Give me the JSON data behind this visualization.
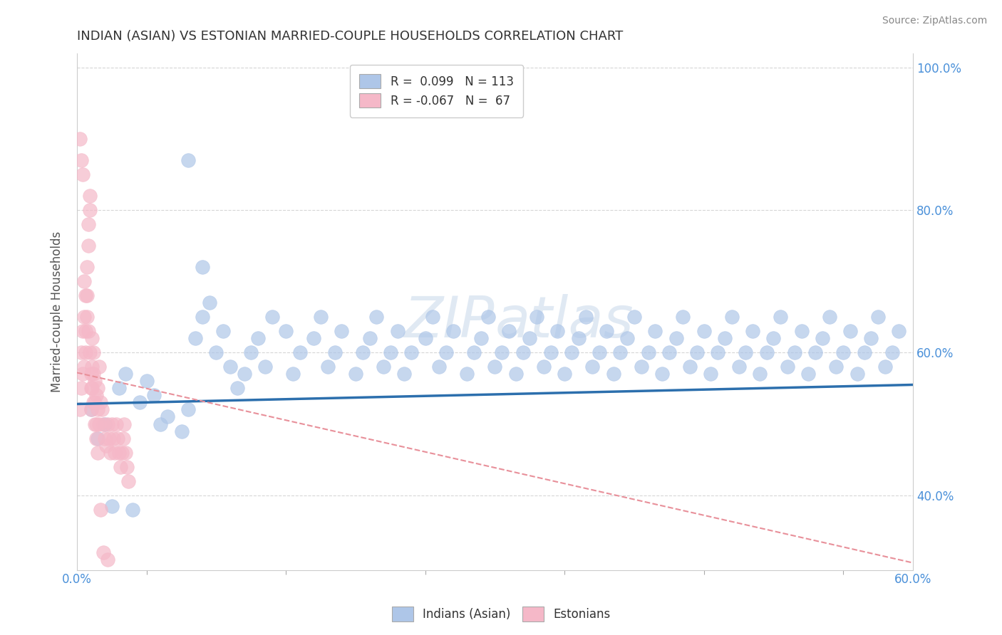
{
  "title": "INDIAN (ASIAN) VS ESTONIAN MARRIED-COUPLE HOUSEHOLDS CORRELATION CHART",
  "source": "Source: ZipAtlas.com",
  "ylabel": "Married-couple Households",
  "ylabel_right_ticks": [
    "40.0%",
    "60.0%",
    "80.0%",
    "100.0%"
  ],
  "legend_blue_r": "R =  0.099",
  "legend_blue_n": "N = 113",
  "legend_pink_r": "R = -0.067",
  "legend_pink_n": "N =  67",
  "blue_color": "#aec6e8",
  "pink_color": "#f5b8c8",
  "blue_line_color": "#2c6fad",
  "pink_line_color": "#e8909a",
  "watermark": "ZIPatlas",
  "x_min": 0.0,
  "x_max": 0.6,
  "y_min": 0.295,
  "y_max": 1.02,
  "blue_scatter_x": [
    0.025,
    0.04,
    0.06,
    0.08,
    0.085,
    0.09,
    0.1,
    0.105,
    0.11,
    0.115,
    0.12,
    0.125,
    0.13,
    0.135,
    0.14,
    0.15,
    0.155,
    0.16,
    0.17,
    0.175,
    0.18,
    0.185,
    0.19,
    0.2,
    0.205,
    0.21,
    0.215,
    0.22,
    0.225,
    0.23,
    0.235,
    0.24,
    0.25,
    0.255,
    0.26,
    0.265,
    0.27,
    0.28,
    0.285,
    0.29,
    0.295,
    0.3,
    0.305,
    0.31,
    0.315,
    0.32,
    0.325,
    0.33,
    0.335,
    0.34,
    0.345,
    0.35,
    0.355,
    0.36,
    0.365,
    0.37,
    0.375,
    0.38,
    0.385,
    0.39,
    0.395,
    0.4,
    0.405,
    0.41,
    0.415,
    0.42,
    0.425,
    0.43,
    0.435,
    0.44,
    0.445,
    0.45,
    0.455,
    0.46,
    0.465,
    0.47,
    0.475,
    0.48,
    0.485,
    0.49,
    0.495,
    0.5,
    0.505,
    0.51,
    0.515,
    0.52,
    0.525,
    0.53,
    0.535,
    0.54,
    0.545,
    0.55,
    0.555,
    0.56,
    0.565,
    0.57,
    0.575,
    0.58,
    0.585,
    0.59,
    0.01,
    0.015,
    0.02,
    0.03,
    0.035,
    0.045,
    0.05,
    0.055,
    0.065,
    0.075,
    0.08,
    0.09,
    0.095
  ],
  "blue_scatter_y": [
    0.385,
    0.38,
    0.5,
    0.52,
    0.62,
    0.65,
    0.6,
    0.63,
    0.58,
    0.55,
    0.57,
    0.6,
    0.62,
    0.58,
    0.65,
    0.63,
    0.57,
    0.6,
    0.62,
    0.65,
    0.58,
    0.6,
    0.63,
    0.57,
    0.6,
    0.62,
    0.65,
    0.58,
    0.6,
    0.63,
    0.57,
    0.6,
    0.62,
    0.65,
    0.58,
    0.6,
    0.63,
    0.57,
    0.6,
    0.62,
    0.65,
    0.58,
    0.6,
    0.63,
    0.57,
    0.6,
    0.62,
    0.65,
    0.58,
    0.6,
    0.63,
    0.57,
    0.6,
    0.62,
    0.65,
    0.58,
    0.6,
    0.63,
    0.57,
    0.6,
    0.62,
    0.65,
    0.58,
    0.6,
    0.63,
    0.57,
    0.6,
    0.62,
    0.65,
    0.58,
    0.6,
    0.63,
    0.57,
    0.6,
    0.62,
    0.65,
    0.58,
    0.6,
    0.63,
    0.57,
    0.6,
    0.62,
    0.65,
    0.58,
    0.6,
    0.63,
    0.57,
    0.6,
    0.62,
    0.65,
    0.58,
    0.6,
    0.63,
    0.57,
    0.6,
    0.62,
    0.65,
    0.58,
    0.6,
    0.63,
    0.52,
    0.48,
    0.5,
    0.55,
    0.57,
    0.53,
    0.56,
    0.54,
    0.51,
    0.49,
    0.87,
    0.72,
    0.67
  ],
  "pink_scatter_x": [
    0.002,
    0.003,
    0.003,
    0.004,
    0.004,
    0.005,
    0.005,
    0.006,
    0.006,
    0.007,
    0.007,
    0.008,
    0.008,
    0.009,
    0.009,
    0.01,
    0.01,
    0.011,
    0.011,
    0.012,
    0.012,
    0.013,
    0.013,
    0.014,
    0.014,
    0.015,
    0.015,
    0.016,
    0.016,
    0.017,
    0.018,
    0.019,
    0.02,
    0.021,
    0.022,
    0.023,
    0.024,
    0.025,
    0.026,
    0.027,
    0.028,
    0.029,
    0.03,
    0.031,
    0.032,
    0.033,
    0.034,
    0.035,
    0.036,
    0.037,
    0.002,
    0.003,
    0.004,
    0.005,
    0.006,
    0.007,
    0.008,
    0.009,
    0.01,
    0.011,
    0.012,
    0.013,
    0.014,
    0.015,
    0.017,
    0.019,
    0.022
  ],
  "pink_scatter_y": [
    0.52,
    0.55,
    0.6,
    0.57,
    0.63,
    0.58,
    0.65,
    0.6,
    0.63,
    0.68,
    0.72,
    0.75,
    0.78,
    0.82,
    0.8,
    0.52,
    0.55,
    0.58,
    0.62,
    0.6,
    0.57,
    0.53,
    0.56,
    0.5,
    0.54,
    0.52,
    0.55,
    0.58,
    0.5,
    0.53,
    0.52,
    0.5,
    0.48,
    0.47,
    0.5,
    0.48,
    0.46,
    0.5,
    0.48,
    0.46,
    0.5,
    0.48,
    0.46,
    0.44,
    0.46,
    0.48,
    0.5,
    0.46,
    0.44,
    0.42,
    0.9,
    0.87,
    0.85,
    0.7,
    0.68,
    0.65,
    0.63,
    0.6,
    0.57,
    0.55,
    0.53,
    0.5,
    0.48,
    0.46,
    0.38,
    0.32,
    0.31
  ],
  "blue_trend_x": [
    0.0,
    0.6
  ],
  "blue_trend_y": [
    0.528,
    0.555
  ],
  "pink_trend_x": [
    0.0,
    0.6
  ],
  "pink_trend_y": [
    0.572,
    0.305
  ],
  "background_color": "#ffffff",
  "grid_color": "#cccccc",
  "title_color": "#333333",
  "right_tick_color": "#4a90d9",
  "legend_text_color": "#333333",
  "bottom_legend_color": "#333333"
}
